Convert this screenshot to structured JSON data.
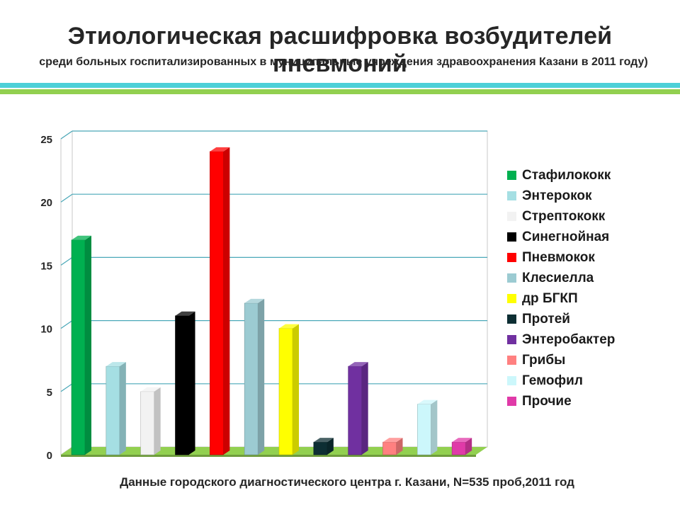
{
  "header": {
    "title": "Этиологическая расшифровка возбудителей пневмоний",
    "subtitle": "среди больных госпитализированных  в  муниципальные учреждения здравоохранения Казани в 2011 году)"
  },
  "footer": {
    "text": "Данные  городского диагностического центра г. Казани, N=535 проб,2011 год"
  },
  "colors": {
    "stripe_top": "#4dd0d8",
    "stripe_bottom": "#92d050",
    "floor": "#92d050",
    "gridline": "#4aa8b8"
  },
  "chart_data": {
    "type": "bar",
    "title": "",
    "xlabel": "",
    "ylabel": "",
    "ylim": [
      0,
      25
    ],
    "yticks": [
      "0",
      "5",
      "10",
      "15",
      "20",
      "25"
    ],
    "grid": true,
    "legend_position": "right",
    "categories": [
      "Стафилококк",
      "Энтерокок",
      "Стрептококк",
      "Синегнойная",
      "Пневмокок",
      "Клесиелла",
      "др БГКП",
      "Протей",
      "Энтеробактер",
      "Грибы",
      "Гемофил",
      "Прочие"
    ],
    "values": [
      17,
      7,
      5,
      11,
      24,
      12,
      10,
      1,
      7,
      1,
      4,
      1
    ],
    "colors": [
      "#00b050",
      "#a5dfe3",
      "#f2f2f2",
      "#000000",
      "#ff0000",
      "#9ccbd2",
      "#ffff00",
      "#0d2e33",
      "#7030a0",
      "#ff8080",
      "#ccf7fb",
      "#e03aa8"
    ]
  }
}
